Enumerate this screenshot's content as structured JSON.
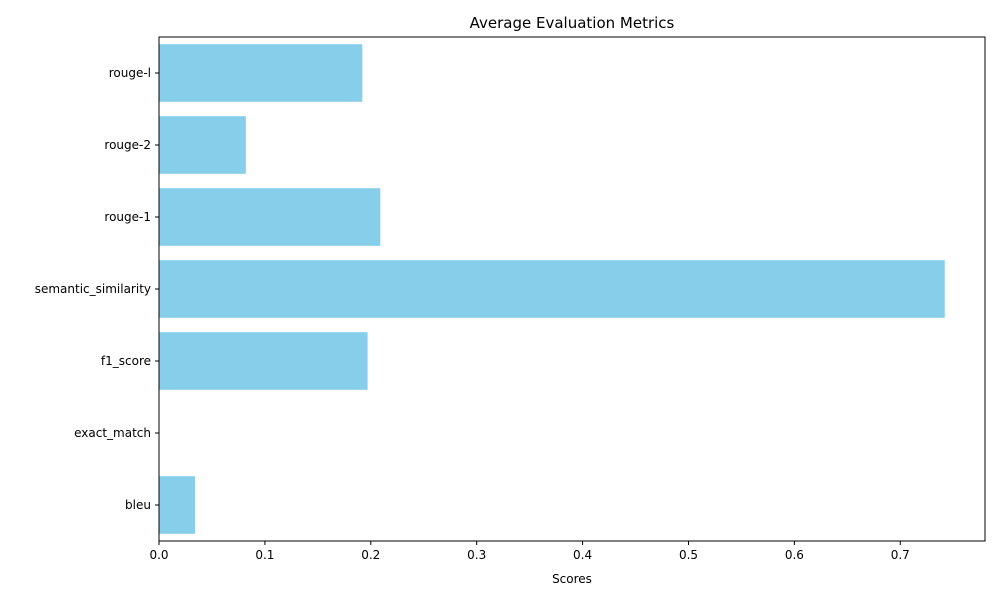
{
  "chart_data": {
    "type": "bar",
    "orientation": "horizontal",
    "title": "Average Evaluation Metrics",
    "xlabel": "Scores",
    "ylabel": "",
    "categories": [
      "bleu",
      "exact_match",
      "f1_score",
      "semantic_similarity",
      "rouge-1",
      "rouge-2",
      "rouge-l"
    ],
    "values": [
      0.034,
      0.0,
      0.197,
      0.742,
      0.209,
      0.082,
      0.192
    ],
    "xlim": [
      0,
      0.78
    ],
    "xticks": [
      0.0,
      0.1,
      0.2,
      0.3,
      0.4,
      0.5,
      0.6,
      0.7
    ],
    "xtick_labels": [
      "0.0",
      "0.1",
      "0.2",
      "0.3",
      "0.4",
      "0.5",
      "0.6",
      "0.7"
    ],
    "bar_color": "#87ceeb",
    "grid": false,
    "legend": "none"
  }
}
